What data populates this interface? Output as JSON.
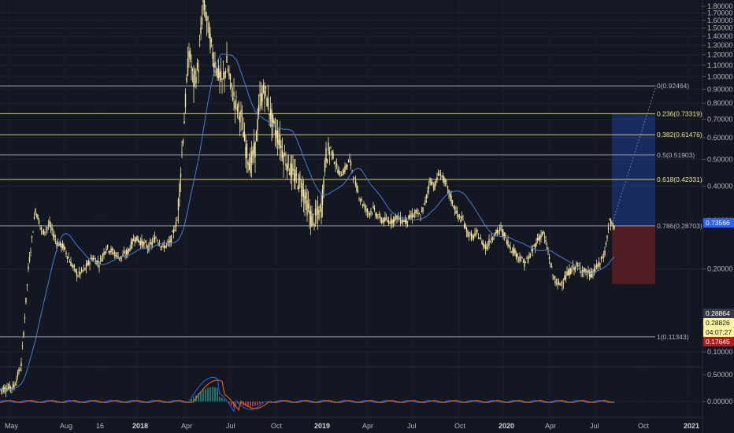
{
  "chart_data": {
    "type": "candlestick",
    "price_axis": {
      "ticks": [
        "1.80000",
        "1.70000",
        "1.60000",
        "1.50000",
        "1.40000",
        "1.30000",
        "1.20000",
        "1.10000",
        "1.00000",
        "0.90000",
        "0.80000",
        "0.70000",
        "0.60000",
        "0.50000",
        "0.40000",
        "0.30000",
        "0.20000",
        "0.10000"
      ],
      "scale": "log",
      "range": [
        0.06,
        1.85
      ]
    },
    "macd_axis": {
      "ticks": [
        "0.50000",
        "0.00000"
      ]
    },
    "time_axis": {
      "labels": [
        {
          "text": "May",
          "bold": false
        },
        {
          "text": "Aug",
          "bold": false
        },
        {
          "text": "16",
          "bold": false
        },
        {
          "text": "2018",
          "bold": true
        },
        {
          "text": "Apr",
          "bold": false
        },
        {
          "text": "Jul",
          "bold": false
        },
        {
          "text": "Oct",
          "bold": false
        },
        {
          "text": "2019",
          "bold": true
        },
        {
          "text": "Apr",
          "bold": false
        },
        {
          "text": "Jul",
          "bold": false
        },
        {
          "text": "Oct",
          "bold": false
        },
        {
          "text": "2020",
          "bold": true
        },
        {
          "text": "Apr",
          "bold": false
        },
        {
          "text": "Jul",
          "bold": false
        },
        {
          "text": "Oct",
          "bold": false
        },
        {
          "text": "2021",
          "bold": true
        }
      ]
    },
    "fib_levels": [
      {
        "label": "0(0.92464)",
        "price": 0.92464,
        "color": "#b2b5be"
      },
      {
        "label": "0.236(0.73319)",
        "price": 0.73319,
        "color": "#f0e68c"
      },
      {
        "label": "0.382(0.61476)",
        "price": 0.61476,
        "color": "#f0e68c"
      },
      {
        "label": "0.5(0.51903)",
        "price": 0.51903,
        "color": "#b2b5be"
      },
      {
        "label": "0.618(0.42331)",
        "price": 0.42331,
        "color": "#f0e68c"
      },
      {
        "label": "0.786(0.28703)",
        "price": 0.28703,
        "color": "#b2b5be"
      },
      {
        "label": "1(0.11343)",
        "price": 0.11343,
        "color": "#b2b5be"
      }
    ],
    "price_badges": [
      {
        "text": "0.73566",
        "price": 0.73566,
        "bg": "#2962ff",
        "fg": "#ffffff"
      },
      {
        "text": "0.28864",
        "price": 0.28864,
        "bg": "#363a45",
        "fg": "#ffffff"
      },
      {
        "text": "0.28826",
        "price": 0.28826,
        "bg": "#fff59d",
        "fg": "#131722"
      },
      {
        "text": "04:07:27",
        "price": 0.2,
        "bg": "#fff59d",
        "fg": "#131722"
      },
      {
        "text": "0.17645",
        "price": 0.17645,
        "bg": "#b71c1c",
        "fg": "#ffffff"
      }
    ],
    "position_tool": {
      "entry": 0.28864,
      "target": 0.73566,
      "stop": 0.17645
    },
    "price_series_approx": [
      [
        0,
        0.073
      ],
      [
        3,
        0.074
      ],
      [
        6,
        0.075
      ],
      [
        9,
        0.09
      ],
      [
        12,
        0.2
      ],
      [
        15,
        0.33
      ],
      [
        18,
        0.27
      ],
      [
        21,
        0.29
      ],
      [
        24,
        0.25
      ],
      [
        27,
        0.24
      ],
      [
        30,
        0.21
      ],
      [
        33,
        0.19
      ],
      [
        36,
        0.2
      ],
      [
        39,
        0.22
      ],
      [
        42,
        0.21
      ],
      [
        45,
        0.24
      ],
      [
        48,
        0.23
      ],
      [
        51,
        0.22
      ],
      [
        54,
        0.23
      ],
      [
        57,
        0.26
      ],
      [
        60,
        0.25
      ],
      [
        63,
        0.24
      ],
      [
        66,
        0.26
      ],
      [
        69,
        0.24
      ],
      [
        72,
        0.25
      ],
      [
        75,
        0.3
      ],
      [
        78,
        0.7
      ],
      [
        80,
        1.25
      ],
      [
        82,
        0.95
      ],
      [
        84,
        1.1
      ],
      [
        86,
        1.85
      ],
      [
        88,
        1.55
      ],
      [
        90,
        1.2
      ],
      [
        92,
        1.05
      ],
      [
        94,
        0.95
      ],
      [
        96,
        1.12
      ],
      [
        98,
        0.9
      ],
      [
        100,
        0.8
      ],
      [
        102,
        0.72
      ],
      [
        104,
        0.55
      ],
      [
        106,
        0.48
      ],
      [
        108,
        0.55
      ],
      [
        110,
        0.82
      ],
      [
        112,
        0.9
      ],
      [
        114,
        0.76
      ],
      [
        116,
        0.65
      ],
      [
        118,
        0.6
      ],
      [
        120,
        0.52
      ],
      [
        122,
        0.48
      ],
      [
        124,
        0.44
      ],
      [
        126,
        0.42
      ],
      [
        128,
        0.4
      ],
      [
        130,
        0.34
      ],
      [
        132,
        0.3
      ],
      [
        134,
        0.31
      ],
      [
        136,
        0.33
      ],
      [
        138,
        0.52
      ],
      [
        140,
        0.55
      ],
      [
        142,
        0.48
      ],
      [
        144,
        0.44
      ],
      [
        146,
        0.46
      ],
      [
        148,
        0.5
      ],
      [
        150,
        0.42
      ],
      [
        152,
        0.37
      ],
      [
        154,
        0.34
      ],
      [
        156,
        0.32
      ],
      [
        158,
        0.33
      ],
      [
        160,
        0.31
      ],
      [
        162,
        0.3
      ],
      [
        164,
        0.3
      ],
      [
        166,
        0.3
      ],
      [
        168,
        0.31
      ],
      [
        170,
        0.3
      ],
      [
        172,
        0.3
      ],
      [
        174,
        0.31
      ],
      [
        176,
        0.32
      ],
      [
        178,
        0.31
      ],
      [
        180,
        0.35
      ],
      [
        182,
        0.42
      ],
      [
        184,
        0.4
      ],
      [
        186,
        0.45
      ],
      [
        188,
        0.42
      ],
      [
        190,
        0.38
      ],
      [
        192,
        0.34
      ],
      [
        194,
        0.31
      ],
      [
        196,
        0.3
      ],
      [
        198,
        0.27
      ],
      [
        200,
        0.26
      ],
      [
        202,
        0.27
      ],
      [
        204,
        0.25
      ],
      [
        206,
        0.24
      ],
      [
        208,
        0.26
      ],
      [
        210,
        0.27
      ],
      [
        212,
        0.28
      ],
      [
        214,
        0.26
      ],
      [
        216,
        0.24
      ],
      [
        218,
        0.23
      ],
      [
        220,
        0.22
      ],
      [
        222,
        0.21
      ],
      [
        224,
        0.22
      ],
      [
        226,
        0.24
      ],
      [
        228,
        0.26
      ],
      [
        230,
        0.27
      ],
      [
        232,
        0.23
      ],
      [
        234,
        0.19
      ],
      [
        236,
        0.175
      ],
      [
        238,
        0.18
      ],
      [
        240,
        0.19
      ],
      [
        242,
        0.2
      ],
      [
        244,
        0.205
      ],
      [
        246,
        0.2
      ],
      [
        248,
        0.195
      ],
      [
        250,
        0.19
      ],
      [
        252,
        0.2
      ],
      [
        254,
        0.21
      ],
      [
        256,
        0.23
      ],
      [
        258,
        0.3
      ],
      [
        260,
        0.28
      ]
    ]
  }
}
